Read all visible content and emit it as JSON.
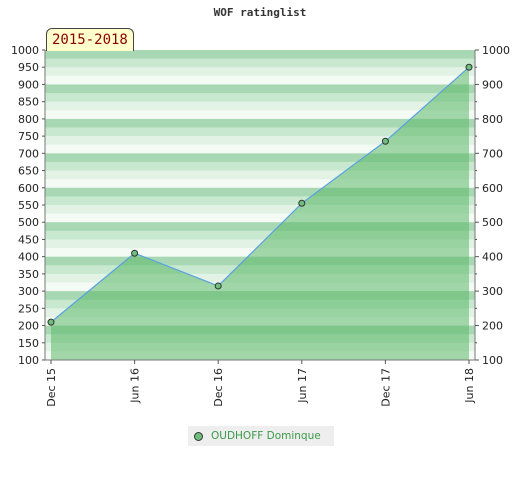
{
  "chart_data": {
    "type": "area",
    "title": "WOF ratinglist",
    "period_label": "2015-2018",
    "x": [
      "Dec 15",
      "Jun 16",
      "Dec 16",
      "Jun 17",
      "Dec 17",
      "Jun 18"
    ],
    "series": [
      {
        "name": "OUDHOFF Dominque",
        "values": [
          210,
          410,
          315,
          555,
          735,
          950
        ]
      }
    ],
    "y_left": {
      "min": 100,
      "max": 1000,
      "step": 50,
      "ticks": [
        "100",
        "150",
        "200",
        "250",
        "300",
        "350",
        "400",
        "450",
        "500",
        "550",
        "600",
        "650",
        "700",
        "750",
        "800",
        "850",
        "900",
        "950",
        "1000"
      ]
    },
    "y_right": {
      "min": 100,
      "max": 1000,
      "step": 100,
      "ticks": [
        "100",
        "200",
        "300",
        "400",
        "500",
        "600",
        "700",
        "800",
        "900",
        "1000"
      ]
    },
    "legend": "bottom-center",
    "grid": "horizontal bands",
    "colors": {
      "area": "#5cb86a",
      "line": "#5aa0e0",
      "marker": "#6dbf7b",
      "band_dark": "#a8d8b3",
      "band_light": "#eef8f0"
    }
  }
}
